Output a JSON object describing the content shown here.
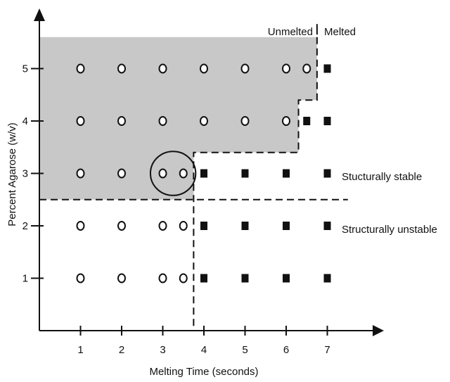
{
  "chart_data": {
    "type": "scatter",
    "title": "",
    "xlabel": "Melting Time (seconds)",
    "ylabel": "Percent Agarose (w/v)",
    "xticks": [
      "1",
      "2",
      "3",
      "4",
      "5",
      "6",
      "7"
    ],
    "yticks": [
      "1",
      "2",
      "3",
      "4",
      "5"
    ],
    "x_range": [
      0,
      8.2
    ],
    "y_range": [
      0,
      6.3
    ],
    "grid": false,
    "legend": "none",
    "series": [
      {
        "marker": "open-circle",
        "points": [
          {
            "x": 1,
            "y": 5
          },
          {
            "x": 2,
            "y": 5
          },
          {
            "x": 3,
            "y": 5
          },
          {
            "x": 4,
            "y": 5
          },
          {
            "x": 5,
            "y": 5
          },
          {
            "x": 6,
            "y": 5
          },
          {
            "x": 6.5,
            "y": 5
          },
          {
            "x": 1,
            "y": 4
          },
          {
            "x": 2,
            "y": 4
          },
          {
            "x": 3,
            "y": 4
          },
          {
            "x": 4,
            "y": 4
          },
          {
            "x": 5,
            "y": 4
          },
          {
            "x": 6,
            "y": 4
          },
          {
            "x": 1,
            "y": 3
          },
          {
            "x": 2,
            "y": 3
          },
          {
            "x": 3,
            "y": 3
          },
          {
            "x": 3.5,
            "y": 3
          },
          {
            "x": 1,
            "y": 2
          },
          {
            "x": 2,
            "y": 2
          },
          {
            "x": 3,
            "y": 2
          },
          {
            "x": 3.5,
            "y": 2
          },
          {
            "x": 1,
            "y": 1
          },
          {
            "x": 2,
            "y": 1
          },
          {
            "x": 3,
            "y": 1
          },
          {
            "x": 3.5,
            "y": 1
          }
        ]
      },
      {
        "marker": "filled-square",
        "points": [
          {
            "x": 7,
            "y": 5
          },
          {
            "x": 6.5,
            "y": 4
          },
          {
            "x": 7,
            "y": 4
          },
          {
            "x": 4,
            "y": 3
          },
          {
            "x": 5,
            "y": 3
          },
          {
            "x": 6,
            "y": 3
          },
          {
            "x": 7,
            "y": 3
          },
          {
            "x": 4,
            "y": 2
          },
          {
            "x": 5,
            "y": 2
          },
          {
            "x": 6,
            "y": 2
          },
          {
            "x": 7,
            "y": 2
          },
          {
            "x": 4,
            "y": 1
          },
          {
            "x": 5,
            "y": 1
          },
          {
            "x": 6,
            "y": 1
          },
          {
            "x": 7,
            "y": 1
          }
        ]
      }
    ],
    "shaded_region": {
      "color": "#c8c8c8",
      "boundary": [
        [
          0,
          5.6
        ],
        [
          6.75,
          5.6
        ],
        [
          6.75,
          4.4
        ],
        [
          6.3,
          4.4
        ],
        [
          6.3,
          3.4
        ],
        [
          3.75,
          3.4
        ],
        [
          3.75,
          2.5
        ],
        [
          0,
          2.5
        ]
      ]
    },
    "divider_lines": [
      {
        "style": "dashed",
        "points": [
          [
            6.75,
            5.6
          ],
          [
            6.75,
            4.4
          ],
          [
            6.3,
            4.4
          ],
          [
            6.3,
            3.4
          ],
          [
            3.75,
            3.4
          ],
          [
            3.75,
            0
          ]
        ]
      },
      {
        "style": "dashed",
        "points": [
          [
            0,
            2.5
          ],
          [
            7.5,
            2.5
          ]
        ]
      },
      {
        "style": "solid",
        "points": [
          [
            6.75,
            5.65
          ],
          [
            6.75,
            5.85
          ]
        ]
      }
    ],
    "highlight_ellipse": {
      "cx": 3.25,
      "cy": 3,
      "rx": 0.55,
      "ry": 0.42
    },
    "annotations": {
      "unmelted": "Unmelted",
      "melted": "Melted",
      "stable": "Stucturally stable",
      "unstable": "Structurally unstable"
    }
  }
}
